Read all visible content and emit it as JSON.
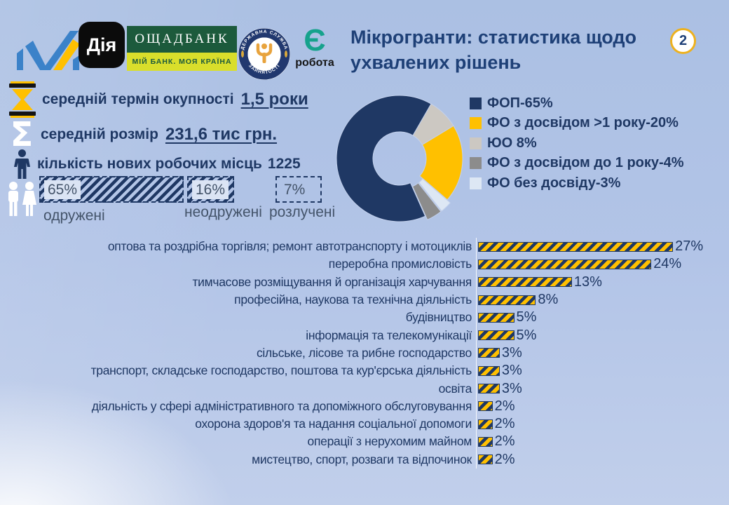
{
  "slide": {
    "number": "2",
    "title_line1": "Мікрогранти: статистика щодо",
    "title_line2": "ухвалених рішень"
  },
  "logos": {
    "diia": "Дія",
    "oschadbank_name": "ОЩАДБАНК",
    "oschadbank_tagline": "МІЙ БАНК. МОЯ КРАЇНА",
    "employment_top": "ДЕРЖАВНА СЛУЖБА",
    "employment_bottom": "ЗАЙНЯТОСТІ",
    "erobota_glyph": "Є",
    "erobota_word": "робота"
  },
  "stats": {
    "payback_label": "середній термін окупності",
    "payback_value": "1,5  роки",
    "size_label": "середній розмір",
    "size_value": "231,6 тис грн.",
    "jobs_label": "кількість нових робочих місць",
    "jobs_value": "1225"
  },
  "colors": {
    "navy": "#1F3864",
    "gold": "#FFC000",
    "title_blue": "#1e4077",
    "muted_label": "#44546A",
    "background_top": "#ABC0E3"
  },
  "chart_data": [
    {
      "type": "pie",
      "donut": true,
      "legend_position": "right",
      "start_angle": 30,
      "draw_order": [
        2,
        1,
        4,
        3,
        0
      ],
      "exploded_indexes": [
        3,
        4
      ],
      "slices": [
        {
          "label": "ФОП-65%",
          "value": 65,
          "color": "#1F3864"
        },
        {
          "label": "ФО з досвідом >1 року-20%",
          "value": 20,
          "color": "#FFC000"
        },
        {
          "label": "ЮО 8%",
          "value": 8,
          "color": "#CCC8C2"
        },
        {
          "label": "ФО з досвідом до 1 року-4%",
          "value": 4,
          "color": "#8C8C8C"
        },
        {
          "label": "ФО без досвіду-3%",
          "value": 3,
          "color": "#DDE7F4"
        }
      ]
    },
    {
      "type": "bar",
      "orientation": "horizontal",
      "bar_style": "yellow-navy diagonal hazard stripes",
      "xlim": [
        0,
        29
      ],
      "categories": [
        "оптова та роздрібна торгівля; ремонт  автотранспорту  і мотоциклів",
        "переробна  промисловість",
        "тимчасове  розміщування  й організація  харчування",
        "професійна,  наукова та технічна  діяльність",
        "будівництво",
        "інформація  та телекомунікації",
        "сільське,  лісове та рибне  господарство",
        "транспорт,  складське  господарство,  поштова  та кур'єрська  діяльність",
        "освіта",
        "діяльність  у сфері  адміністративного  та допоміжного  обслуговування",
        "охорона  здоров'я  та надання  соціальної  допомоги",
        "операції  з нерухомим  майном",
        "мистецтво,  спорт,  розваги  та відпочинок"
      ],
      "values": [
        27,
        24,
        13,
        8,
        5,
        5,
        3,
        3,
        3,
        2,
        2,
        2,
        2
      ],
      "value_labels": [
        "27%",
        "24%",
        "13%",
        "8%",
        "5%",
        "5%",
        "3%",
        "3%",
        "3%",
        "2%",
        "2%",
        "2%",
        "2%"
      ]
    },
    {
      "type": "bar",
      "orientation": "horizontal",
      "bar_style": "navy diagonal hatch with dashed outline; last bar outline only",
      "categories": [
        "одружені",
        "неодружені",
        "розлучені"
      ],
      "values": [
        65,
        16,
        7
      ],
      "value_labels": [
        "65%",
        "16%",
        "7%"
      ]
    }
  ]
}
